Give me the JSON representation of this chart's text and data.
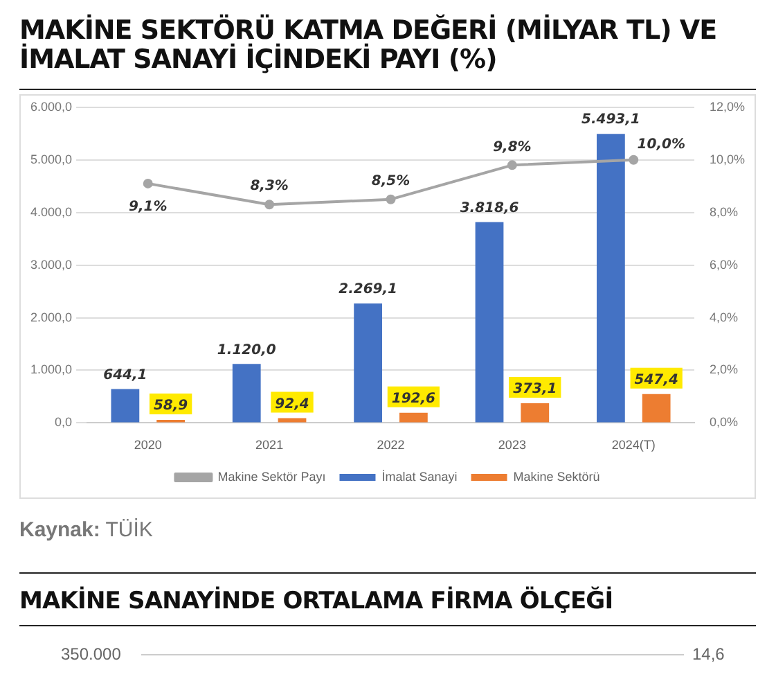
{
  "chart_data": {
    "type": "bar",
    "title": "MAKİNE SEKTÖRÜ KATMA DEĞERİ (MİLYAR TL) VE İMALAT SANAYİ İÇİNDEKİ PAYI (%)",
    "categories": [
      "2020",
      "2021",
      "2022",
      "2023",
      "2024(T)"
    ],
    "series": [
      {
        "name": "İmalat Sanayi",
        "color": "#4472c4",
        "values": [
          644.1,
          1120.0,
          2269.1,
          3818.6,
          5493.1
        ],
        "value_labels": [
          "644,1",
          "1.120,0",
          "2.269,1",
          "3.818,6",
          "5.493,1"
        ]
      },
      {
        "name": "Makine Sektörü",
        "color": "#ed7d31",
        "values": [
          58.9,
          92.4,
          192.6,
          373.1,
          547.4
        ],
        "value_labels": [
          "58,9",
          "92,4",
          "192,6",
          "373,1",
          "547,4"
        ]
      },
      {
        "name": "Makine Sektör Payı",
        "type": "line",
        "axis": "y2",
        "color": "#a5a5a5",
        "values": [
          9.1,
          8.3,
          8.5,
          9.8,
          10.0
        ],
        "value_labels": [
          "9,1%",
          "8,3%",
          "8,5%",
          "9,8%",
          "10,0%"
        ]
      }
    ],
    "ylim": [
      0,
      6000
    ],
    "yticks": [
      {
        "value": 0,
        "label": "0,0"
      },
      {
        "value": 1000,
        "label": "1.000,0"
      },
      {
        "value": 2000,
        "label": "2.000,0"
      },
      {
        "value": 3000,
        "label": "3.000,0"
      },
      {
        "value": 4000,
        "label": "4.000,0"
      },
      {
        "value": 5000,
        "label": "5.000,0"
      },
      {
        "value": 6000,
        "label": "6.000,0"
      }
    ],
    "y2lim": [
      0,
      12
    ],
    "y2ticks": [
      {
        "value": 0,
        "label": "0,0%"
      },
      {
        "value": 2,
        "label": "2,0%"
      },
      {
        "value": 4,
        "label": "4,0%"
      },
      {
        "value": 6,
        "label": "6,0%"
      },
      {
        "value": 8,
        "label": "8,0%"
      },
      {
        "value": 10,
        "label": "10,0%"
      },
      {
        "value": 12,
        "label": "12,0%"
      }
    ],
    "grid": "y",
    "legend": "bottom",
    "marker": "circle",
    "annotations": [
      "Kaynak: TÜİK",
      "MAKİNE SANAYİNDE ORTALAMA FİRMA ÖLÇEĞİ",
      "350.000",
      "14,6"
    ]
  }
}
